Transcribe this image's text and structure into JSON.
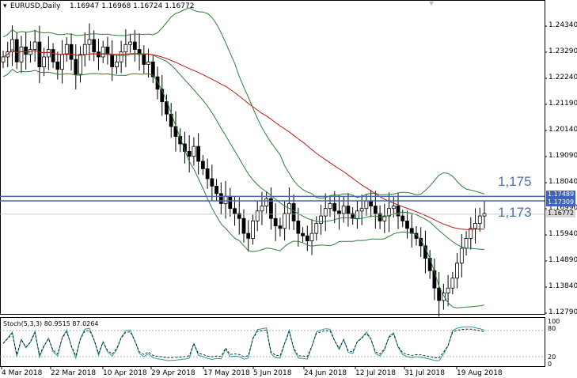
{
  "header": {
    "symbol": "EURUSD,Daily",
    "ohlc": "1.16947 1.16968 1.16724 1.16772"
  },
  "oscillator": {
    "label": "Stoch(5,3,3) 80.9515 87.0264",
    "levels": [
      "100",
      "80",
      "20",
      "0"
    ]
  },
  "price_axis": {
    "ticks": [
      "1.24340",
      "1.23290",
      "1.22240",
      "1.21190",
      "1.20140",
      "1.19090",
      "1.18040",
      "1.16990",
      "1.15940",
      "1.14890",
      "1.13840",
      "1.12790"
    ]
  },
  "time_axis": {
    "labels": [
      "4 Mar 2018",
      "22 Mar 2018",
      "10 Apr 2018",
      "29 Apr 2018",
      "17 May 2018",
      "5 Jun 2018",
      "24 Jun 2018",
      "12 Jul 2018",
      "31 Jul 2018",
      "19 Aug 2018"
    ]
  },
  "levels": {
    "upper_label": "1,175",
    "lower_label": "1,173",
    "tag_upper": "1.17489",
    "tag_lower": "1.17309",
    "tag_current": "1.16772"
  },
  "colors": {
    "band": "#2e7d3a",
    "ma": "#c01818",
    "level_line": "#4a6aa5",
    "tag_blue": "#3f63b8",
    "tag_current": "#d8d8d8",
    "candle": "#000000",
    "stoch_main": "#2a9a9a",
    "stoch_signal": "#000000"
  },
  "icons": [
    "chart-menu-icon"
  ],
  "chart_data": {
    "type": "candlestick",
    "series": [
      {
        "name": "EURUSD,Daily",
        "close": [
          1.231,
          1.233,
          1.238,
          1.229,
          1.235,
          1.232,
          1.234,
          1.237,
          1.227,
          1.231,
          1.234,
          1.229,
          1.226,
          1.232,
          1.236,
          1.23,
          1.224,
          1.232,
          1.236,
          1.238,
          1.233,
          1.231,
          1.235,
          1.232,
          1.227,
          1.229,
          1.233,
          1.236,
          1.237,
          1.234,
          1.232,
          1.228,
          1.229,
          1.223,
          1.218,
          1.213,
          1.208,
          1.203,
          1.199,
          1.196,
          1.193,
          1.191,
          1.195,
          1.189,
          1.186,
          1.182,
          1.179,
          1.176,
          1.172,
          1.175,
          1.17,
          1.168,
          1.166,
          1.16,
          1.158,
          1.165,
          1.169,
          1.171,
          1.174,
          1.166,
          1.163,
          1.162,
          1.168,
          1.172,
          1.165,
          1.16,
          1.159,
          1.157,
          1.16,
          1.164,
          1.167,
          1.17,
          1.172,
          1.169,
          1.168,
          1.171,
          1.168,
          1.166,
          1.169,
          1.17,
          1.173,
          1.171,
          1.168,
          1.165,
          1.167,
          1.17,
          1.171,
          1.167,
          1.165,
          1.162,
          1.16,
          1.158,
          1.155,
          1.15,
          1.145,
          1.138,
          1.133,
          1.136,
          1.138,
          1.142,
          1.148,
          1.154,
          1.158,
          1.162,
          1.164,
          1.167,
          1.168
        ]
      }
    ],
    "ylim": [
      1.1269,
      1.2473
    ]
  }
}
